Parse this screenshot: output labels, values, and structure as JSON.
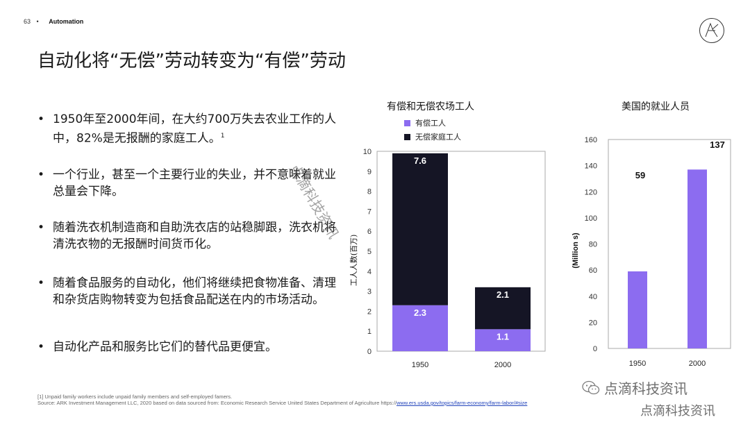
{
  "header": {
    "page_number": "63",
    "separator": "•",
    "section": "Automation"
  },
  "title": "自动化将“无偿”劳动转变为“有偿”劳动",
  "bullets": [
    {
      "text": "1950年至2000年间，在大约700万失去农业工作的人中，82%是无报酬的家庭工人。",
      "sup": "1"
    },
    {
      "text": "一个行业，甚至一个主要行业的失业，并不意味着就业总量会下降。"
    },
    {
      "text": "随着洗衣机制造商和自助洗衣店的站稳脚跟，洗衣机将清洗衣物的无报酬时间货币化。"
    },
    {
      "text": "随着食品服务的自动化，他们将继续把食物准备、清理和杂货店购物转变为包括食品配送在内的市场活动。"
    },
    {
      "text": "自动化产品和服务比它们的替代品更便宜。"
    }
  ],
  "footnote": {
    "line1": "[1] Unpaid family workers include unpaid family members and self-employed famers.",
    "line2_prefix": "Source: ARK Investment Management LLC, 2020 based on data sourced from: Economic Research Service United States Department of Agriculture https://",
    "link": "www.ers.usda.gov/topics/farm-economy/farm-labor/#size"
  },
  "watermark": {
    "diagonal": "点滴科技资讯",
    "wechat": "点滴科技资讯",
    "bottom": "点滴科技资讯"
  },
  "colors": {
    "paid": "#8c6cf0",
    "unpaid": "#151525",
    "grid": "#cccccc"
  },
  "chart_data": [
    {
      "type": "bar",
      "stacked": true,
      "title": "有偿和无偿农场工人",
      "ylabel": "工人人数(百万)",
      "ylim": [
        0,
        10
      ],
      "yticks": [
        0,
        1,
        2,
        3,
        4,
        5,
        6,
        7,
        8,
        9,
        10
      ],
      "categories": [
        "1950",
        "2000"
      ],
      "series": [
        {
          "name": "有偿工人",
          "values": [
            2.3,
            1.1
          ],
          "labels": [
            "2.3",
            "1.1"
          ]
        },
        {
          "name": "无偿家庭工人",
          "values": [
            7.6,
            2.1
          ],
          "labels": [
            "7.6",
            "2.1"
          ]
        }
      ],
      "legend": "top-left"
    },
    {
      "type": "bar",
      "title": "美国的就业人员",
      "ylabel": "(Million s)",
      "ylim": [
        0,
        160
      ],
      "yticks": [
        0,
        20,
        40,
        60,
        80,
        100,
        120,
        140,
        160
      ],
      "categories": [
        "1950",
        "2000"
      ],
      "values": [
        59,
        137
      ],
      "labels": [
        "59",
        "137"
      ]
    }
  ]
}
